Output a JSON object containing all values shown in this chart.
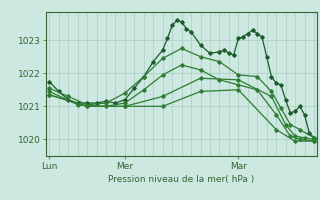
{
  "background_color": "#cce8e0",
  "grid_color_v": "#aaccc4",
  "grid_color_h": "#aaccc4",
  "line_colors": [
    "#1a5c2a",
    "#2e7d32",
    "#2e7d32",
    "#2e7d32",
    "#2e7d32"
  ],
  "xlabel": "Pression niveau de la mer( hPa )",
  "yticks": [
    1020,
    1021,
    1022,
    1023
  ],
  "xtick_labels": [
    "Lun",
    "Mer",
    "Mar"
  ],
  "xtick_positions": [
    0,
    8,
    20
  ],
  "ylim": [
    1019.5,
    1023.85
  ],
  "xlim": [
    -0.3,
    28.3
  ],
  "series": [
    [
      0.0,
      1021.75,
      1.0,
      1021.45,
      2.0,
      1021.2,
      3.0,
      1021.1,
      4.0,
      1021.1,
      5.0,
      1021.1,
      6.0,
      1021.15,
      7.0,
      1021.1,
      8.0,
      1021.2,
      9.0,
      1021.55,
      10.0,
      1021.9,
      11.0,
      1022.35,
      12.0,
      1022.7,
      12.5,
      1023.05,
      13.0,
      1023.45,
      13.5,
      1023.6,
      14.0,
      1023.55,
      14.5,
      1023.35,
      15.0,
      1023.25,
      16.0,
      1022.85,
      17.0,
      1022.6,
      18.0,
      1022.65,
      18.5,
      1022.7,
      19.0,
      1022.6,
      19.5,
      1022.55,
      20.0,
      1023.05,
      20.5,
      1023.1,
      21.0,
      1023.2,
      21.5,
      1023.3,
      22.0,
      1023.2,
      22.5,
      1023.1,
      23.0,
      1022.5,
      23.5,
      1021.9,
      24.0,
      1021.7,
      24.5,
      1021.65,
      25.0,
      1021.2,
      25.5,
      1020.8,
      26.0,
      1020.85,
      26.5,
      1021.0,
      27.0,
      1020.75,
      27.5,
      1020.2,
      28.0,
      1020.05
    ],
    [
      0.0,
      1021.55,
      2.0,
      1021.3,
      4.0,
      1021.05,
      6.0,
      1021.1,
      8.0,
      1021.4,
      10.0,
      1021.9,
      12.0,
      1022.45,
      14.0,
      1022.75,
      16.0,
      1022.5,
      18.0,
      1022.35,
      20.0,
      1021.95,
      22.0,
      1021.9,
      23.5,
      1021.45,
      24.5,
      1020.95,
      25.5,
      1020.45,
      26.5,
      1020.3,
      28.0,
      1020.05
    ],
    [
      0.0,
      1021.45,
      3.0,
      1021.05,
      6.0,
      1021.0,
      8.0,
      1021.1,
      10.0,
      1021.5,
      12.0,
      1021.95,
      14.0,
      1022.25,
      16.0,
      1022.1,
      18.0,
      1021.8,
      20.0,
      1021.65,
      22.0,
      1021.5,
      24.0,
      1020.75,
      25.5,
      1020.1,
      26.5,
      1020.0,
      28.0,
      1019.95
    ],
    [
      0.0,
      1021.35,
      4.0,
      1021.0,
      8.0,
      1021.0,
      12.0,
      1021.0,
      16.0,
      1021.45,
      20.0,
      1021.5,
      24.0,
      1020.3,
      26.0,
      1019.95,
      28.0,
      1019.95
    ],
    [
      0.0,
      1021.35,
      4.0,
      1021.0,
      8.0,
      1021.0,
      12.0,
      1021.3,
      16.0,
      1021.85,
      20.0,
      1021.8,
      23.5,
      1021.3,
      25.0,
      1020.45,
      26.0,
      1020.1,
      27.0,
      1020.05,
      28.0,
      1020.0
    ]
  ],
  "spine_color": "#336633",
  "tick_color": "#336633",
  "label_color": "#336633"
}
